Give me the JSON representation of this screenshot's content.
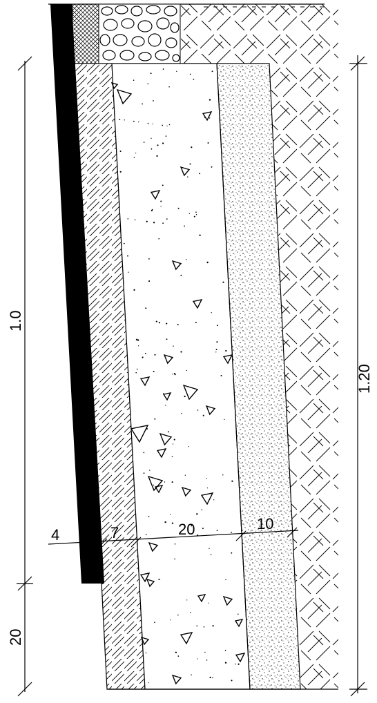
{
  "drawing": {
    "labels": {
      "lining_thickness": "4",
      "layer1_thickness": "7",
      "layer2_thickness": "20",
      "layer3_thickness": "10",
      "height_left": "1.0",
      "height_right": "1.20",
      "base_height": "20"
    }
  }
}
